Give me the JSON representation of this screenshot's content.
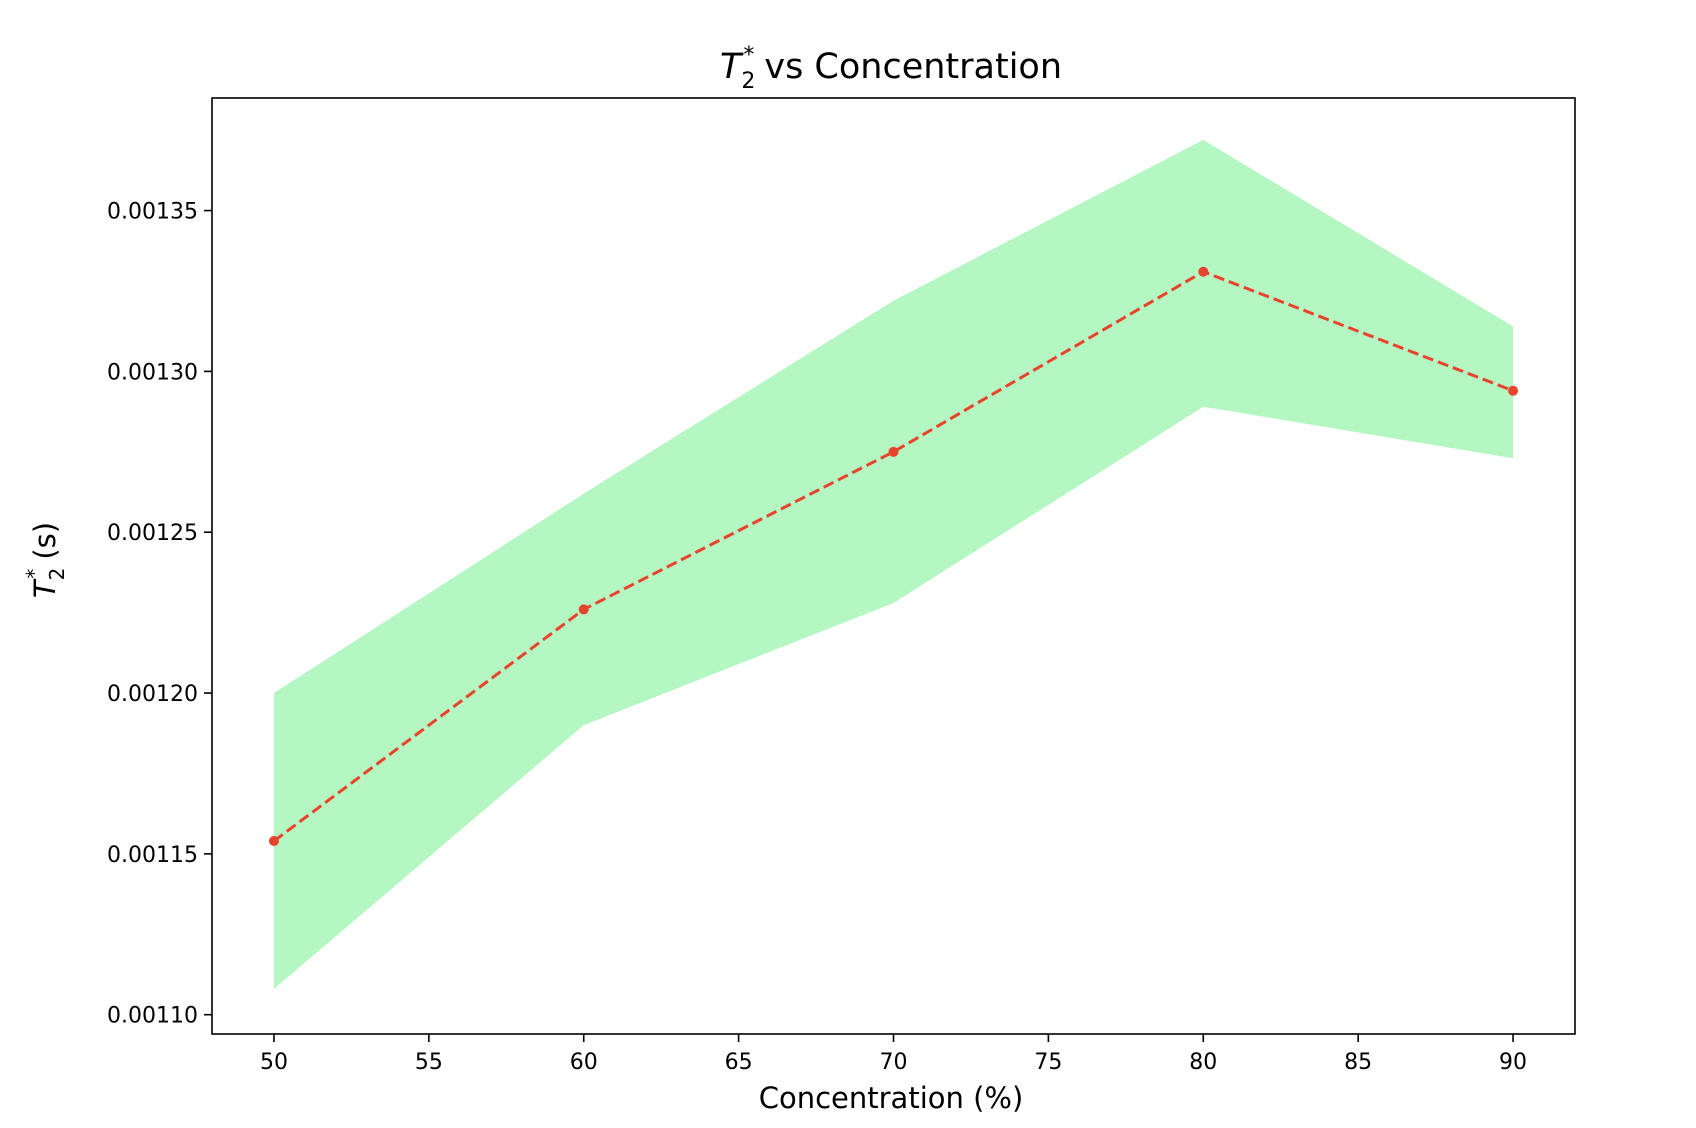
{
  "chart_data": {
    "type": "line",
    "title": {
      "symbol": "T",
      "subscript": "2",
      "superscript": "*",
      "suffix": "vs Concentration"
    },
    "xlabel": "Concentration (%)",
    "ylabel": {
      "symbol": "T",
      "subscript": "2",
      "superscript": "*",
      "suffix": "(s)"
    },
    "xlim": [
      48,
      92
    ],
    "ylim": [
      0.001094,
      0.001385
    ],
    "xticks": [
      50,
      55,
      60,
      65,
      70,
      75,
      80,
      85,
      90
    ],
    "xtick_labels": [
      "50",
      "55",
      "60",
      "65",
      "70",
      "75",
      "80",
      "85",
      "90"
    ],
    "yticks": [
      0.0011,
      0.00115,
      0.0012,
      0.00125,
      0.0013,
      0.00135
    ],
    "ytick_labels": [
      "0.00110",
      "0.00115",
      "0.00120",
      "0.00125",
      "0.00130",
      "0.00135"
    ],
    "grid": false,
    "series": [
      {
        "x": [
          50,
          60,
          70,
          80,
          90
        ],
        "y": [
          0.001154,
          0.001226,
          0.001275,
          0.001331,
          0.001294
        ],
        "color": "#e8432b",
        "linestyle": "dashed",
        "marker": "circle"
      }
    ],
    "band": {
      "x": [
        50,
        60,
        70,
        80,
        90
      ],
      "lower": [
        0.001108,
        0.00119,
        0.001228,
        0.001289,
        0.001273
      ],
      "upper": [
        0.0012,
        0.001262,
        0.001322,
        0.001372,
        0.001314
      ],
      "color": "#b5f7c3"
    }
  }
}
